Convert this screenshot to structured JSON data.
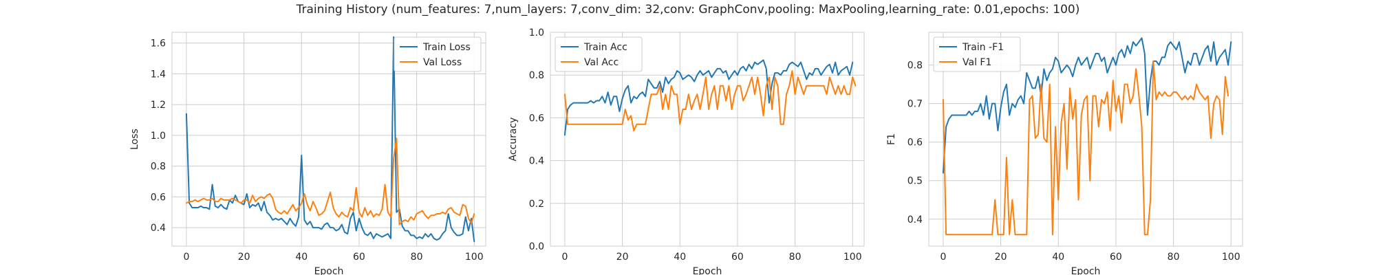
{
  "suptitle": "Training History (num_features: 7,num_layers: 7,conv_dim: 32,conv: GraphConv,pooling: MaxPooling,learning_rate: 0.01,epochs: 100)",
  "colors": {
    "blue": "#1f77b4",
    "orange": "#ff7f0e",
    "grid": "#cccccc",
    "spine": "#cccccc",
    "text": "#262626"
  },
  "chart_data": [
    {
      "type": "line",
      "xlabel": "Epoch",
      "ylabel": "Loss",
      "xlim": [
        -5,
        104
      ],
      "ylim": [
        0.28,
        1.67
      ],
      "xticks": [
        0,
        20,
        40,
        60,
        80,
        100
      ],
      "yticks": [
        0.4,
        0.6,
        0.8,
        1.0,
        1.2,
        1.4,
        1.6
      ],
      "tick_labels_y": [
        "0.4",
        "0.6",
        "0.8",
        "1.0",
        "1.2",
        "1.4",
        "1.6"
      ],
      "grid": true,
      "legend": "top-right",
      "series": [
        {
          "name": "Train Loss",
          "color_key": "blue",
          "values": [
            1.14,
            0.56,
            0.53,
            0.53,
            0.53,
            0.54,
            0.53,
            0.53,
            0.52,
            0.68,
            0.54,
            0.53,
            0.55,
            0.53,
            0.52,
            0.58,
            0.56,
            0.61,
            0.57,
            0.56,
            0.55,
            0.62,
            0.53,
            0.55,
            0.54,
            0.56,
            0.51,
            0.57,
            0.5,
            0.48,
            0.45,
            0.46,
            0.45,
            0.46,
            0.44,
            0.42,
            0.46,
            0.43,
            0.41,
            0.47,
            0.87,
            0.45,
            0.42,
            0.44,
            0.4,
            0.4,
            0.4,
            0.39,
            0.42,
            0.43,
            0.4,
            0.4,
            0.38,
            0.39,
            0.42,
            0.37,
            0.36,
            0.46,
            0.5,
            0.38,
            0.46,
            0.4,
            0.36,
            0.35,
            0.37,
            0.33,
            0.36,
            0.35,
            0.34,
            0.35,
            0.36,
            0.33,
            1.64,
            0.5,
            0.52,
            0.41,
            0.38,
            0.38,
            0.35,
            0.35,
            0.33,
            0.34,
            0.33,
            0.36,
            0.34,
            0.36,
            0.33,
            0.32,
            0.33,
            0.36,
            0.38,
            0.49,
            0.4,
            0.37,
            0.35,
            0.35,
            0.36,
            0.47,
            0.38,
            0.46,
            0.31
          ]
        },
        {
          "name": "Val Loss",
          "color_key": "orange",
          "values": [
            0.56,
            0.57,
            0.57,
            0.58,
            0.57,
            0.58,
            0.59,
            0.58,
            0.58,
            0.59,
            0.57,
            0.57,
            0.59,
            0.58,
            0.58,
            0.58,
            0.59,
            0.58,
            0.57,
            0.56,
            0.58,
            0.58,
            0.56,
            0.61,
            0.57,
            0.59,
            0.6,
            0.59,
            0.61,
            0.62,
            0.59,
            0.52,
            0.5,
            0.49,
            0.51,
            0.49,
            0.52,
            0.55,
            0.51,
            0.53,
            0.56,
            0.62,
            0.55,
            0.51,
            0.57,
            0.53,
            0.48,
            0.49,
            0.51,
            0.57,
            0.63,
            0.53,
            0.49,
            0.47,
            0.5,
            0.48,
            0.47,
            0.53,
            0.51,
            0.66,
            0.5,
            0.47,
            0.53,
            0.48,
            0.51,
            0.47,
            0.49,
            0.48,
            0.52,
            0.68,
            0.5,
            0.47,
            0.85,
            0.98,
            0.42,
            0.44,
            0.45,
            0.44,
            0.47,
            0.45,
            0.49,
            0.5,
            0.51,
            0.48,
            0.46,
            0.48,
            0.48,
            0.49,
            0.49,
            0.5,
            0.49,
            0.52,
            0.53,
            0.5,
            0.49,
            0.48,
            0.55,
            0.54,
            0.46,
            0.43,
            0.49
          ]
        }
      ]
    },
    {
      "type": "line",
      "xlabel": "Epoch",
      "ylabel": "Accuracy",
      "xlim": [
        -5,
        104
      ],
      "ylim": [
        0.0,
        1.0
      ],
      "xticks": [
        0,
        20,
        40,
        60,
        80,
        100
      ],
      "yticks": [
        0.0,
        0.2,
        0.4,
        0.6,
        0.8,
        1.0
      ],
      "tick_labels_y": [
        "0.0",
        "0.2",
        "0.4",
        "0.6",
        "0.8",
        "1.0"
      ],
      "grid": true,
      "legend": "top-left",
      "series": [
        {
          "name": "Train Acc",
          "color_key": "blue",
          "values": [
            0.52,
            0.64,
            0.66,
            0.67,
            0.67,
            0.67,
            0.67,
            0.67,
            0.67,
            0.68,
            0.67,
            0.68,
            0.68,
            0.7,
            0.67,
            0.72,
            0.66,
            0.7,
            0.7,
            0.63,
            0.69,
            0.73,
            0.75,
            0.67,
            0.7,
            0.69,
            0.71,
            0.72,
            0.7,
            0.78,
            0.76,
            0.74,
            0.74,
            0.77,
            0.72,
            0.79,
            0.76,
            0.78,
            0.79,
            0.82,
            0.81,
            0.78,
            0.79,
            0.8,
            0.79,
            0.77,
            0.8,
            0.82,
            0.8,
            0.81,
            0.82,
            0.79,
            0.81,
            0.83,
            0.83,
            0.81,
            0.82,
            0.78,
            0.8,
            0.82,
            0.8,
            0.83,
            0.84,
            0.82,
            0.85,
            0.83,
            0.86,
            0.85,
            0.86,
            0.87,
            0.83,
            0.67,
            0.76,
            0.81,
            0.81,
            0.8,
            0.82,
            0.82,
            0.85,
            0.86,
            0.85,
            0.84,
            0.86,
            0.82,
            0.78,
            0.81,
            0.8,
            0.83,
            0.83,
            0.8,
            0.82,
            0.84,
            0.85,
            0.81,
            0.86,
            0.8,
            0.82,
            0.83,
            0.84,
            0.8,
            0.86
          ]
        },
        {
          "name": "Val Acc",
          "color_key": "orange",
          "values": [
            0.71,
            0.57,
            0.57,
            0.57,
            0.57,
            0.57,
            0.57,
            0.57,
            0.57,
            0.57,
            0.57,
            0.57,
            0.57,
            0.57,
            0.57,
            0.57,
            0.57,
            0.57,
            0.57,
            0.57,
            0.57,
            0.64,
            0.59,
            0.61,
            0.54,
            0.57,
            0.57,
            0.57,
            0.57,
            0.64,
            0.71,
            0.71,
            0.71,
            0.75,
            0.64,
            0.71,
            0.64,
            0.75,
            0.71,
            0.71,
            0.57,
            0.64,
            0.64,
            0.71,
            0.64,
            0.68,
            0.71,
            0.64,
            0.71,
            0.79,
            0.64,
            0.71,
            0.75,
            0.64,
            0.75,
            0.75,
            0.68,
            0.75,
            0.64,
            0.71,
            0.75,
            0.75,
            0.68,
            0.71,
            0.75,
            0.79,
            0.71,
            0.79,
            0.71,
            0.61,
            0.75,
            0.79,
            0.64,
            0.79,
            0.75,
            0.57,
            0.57,
            0.71,
            0.75,
            0.82,
            0.71,
            0.79,
            0.75,
            0.71,
            0.75,
            0.75,
            0.75,
            0.75,
            0.75,
            0.75,
            0.75,
            0.71,
            0.79,
            0.75,
            0.71,
            0.75,
            0.71,
            0.75,
            0.71,
            0.71,
            0.79,
            0.75
          ]
        }
      ]
    },
    {
      "type": "line",
      "xlabel": "Epoch",
      "ylabel": "F1",
      "xlim": [
        -5,
        104
      ],
      "ylim": [
        0.33,
        0.885
      ],
      "xticks": [
        0,
        20,
        40,
        60,
        80,
        100
      ],
      "yticks": [
        0.4,
        0.5,
        0.6,
        0.7,
        0.8
      ],
      "tick_labels_y": [
        "0.4",
        "0.5",
        "0.6",
        "0.7",
        "0.8"
      ],
      "grid": true,
      "legend": "top-left",
      "series": [
        {
          "name": "Train -F1",
          "color_key": "blue",
          "values": [
            0.52,
            0.64,
            0.66,
            0.67,
            0.67,
            0.67,
            0.67,
            0.67,
            0.67,
            0.68,
            0.67,
            0.68,
            0.68,
            0.7,
            0.67,
            0.72,
            0.66,
            0.7,
            0.7,
            0.63,
            0.69,
            0.73,
            0.75,
            0.67,
            0.7,
            0.69,
            0.71,
            0.72,
            0.7,
            0.78,
            0.76,
            0.74,
            0.74,
            0.77,
            0.72,
            0.79,
            0.76,
            0.78,
            0.79,
            0.82,
            0.81,
            0.78,
            0.79,
            0.8,
            0.79,
            0.77,
            0.8,
            0.82,
            0.8,
            0.81,
            0.82,
            0.79,
            0.81,
            0.83,
            0.83,
            0.81,
            0.82,
            0.78,
            0.8,
            0.82,
            0.8,
            0.83,
            0.84,
            0.82,
            0.85,
            0.83,
            0.86,
            0.85,
            0.86,
            0.87,
            0.83,
            0.67,
            0.76,
            0.81,
            0.81,
            0.8,
            0.82,
            0.82,
            0.85,
            0.86,
            0.85,
            0.84,
            0.86,
            0.82,
            0.78,
            0.81,
            0.8,
            0.83,
            0.83,
            0.8,
            0.82,
            0.84,
            0.85,
            0.81,
            0.86,
            0.8,
            0.82,
            0.83,
            0.84,
            0.8,
            0.86
          ]
        },
        {
          "name": "Val F1",
          "color_key": "orange",
          "values": [
            0.71,
            0.36,
            0.36,
            0.36,
            0.36,
            0.36,
            0.36,
            0.36,
            0.36,
            0.36,
            0.36,
            0.36,
            0.36,
            0.36,
            0.36,
            0.36,
            0.36,
            0.36,
            0.45,
            0.36,
            0.36,
            0.36,
            0.56,
            0.36,
            0.45,
            0.36,
            0.36,
            0.36,
            0.36,
            0.36,
            0.71,
            0.72,
            0.61,
            0.62,
            0.75,
            0.61,
            0.6,
            0.75,
            0.36,
            0.64,
            0.45,
            0.65,
            0.7,
            0.53,
            0.74,
            0.66,
            0.71,
            0.45,
            0.67,
            0.71,
            0.72,
            0.5,
            0.72,
            0.72,
            0.64,
            0.71,
            0.7,
            0.73,
            0.63,
            0.76,
            0.68,
            0.72,
            0.65,
            0.75,
            0.75,
            0.7,
            0.72,
            0.79,
            0.72,
            0.64,
            0.36,
            0.36,
            0.45,
            0.81,
            0.71,
            0.73,
            0.72,
            0.73,
            0.72,
            0.72,
            0.73,
            0.73,
            0.72,
            0.71,
            0.72,
            0.71,
            0.72,
            0.71,
            0.75,
            0.73,
            0.72,
            0.71,
            0.72,
            0.61,
            0.7,
            0.72,
            0.71,
            0.62,
            0.77,
            0.72
          ]
        }
      ]
    }
  ]
}
